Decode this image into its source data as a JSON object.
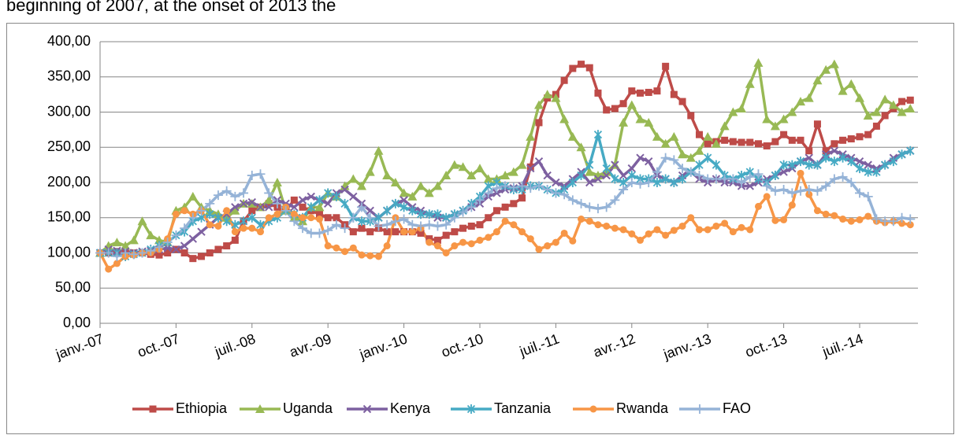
{
  "page_text": "beginning of 2007, at the onset of 2013 the",
  "chart_data": {
    "type": "line",
    "categories": [
      "janv.-07",
      null,
      null,
      null,
      null,
      null,
      null,
      null,
      null,
      "oct.-07",
      null,
      null,
      null,
      null,
      null,
      null,
      null,
      null,
      "juil.-08",
      null,
      null,
      null,
      null,
      null,
      null,
      null,
      null,
      "avr.-09",
      null,
      null,
      null,
      null,
      null,
      null,
      null,
      null,
      "janv.-10",
      null,
      null,
      null,
      null,
      null,
      null,
      null,
      null,
      "oct.-10",
      null,
      null,
      null,
      null,
      null,
      null,
      null,
      null,
      "juil.-11",
      null,
      null,
      null,
      null,
      null,
      null,
      null,
      null,
      "avr.-12",
      null,
      null,
      null,
      null,
      null,
      null,
      null,
      null,
      "janv.-13",
      null,
      null,
      null,
      null,
      null,
      null,
      null,
      null,
      "oct.-13",
      null,
      null,
      null,
      null,
      null,
      null,
      null,
      null,
      "juil.-14",
      null,
      null,
      null,
      null,
      null,
      null
    ],
    "ylim": [
      0,
      400
    ],
    "yticks": [
      {
        "value": 0,
        "label": "0,00"
      },
      {
        "value": 50,
        "label": "50,00"
      },
      {
        "value": 100,
        "label": "100,00"
      },
      {
        "value": 150,
        "label": "150,00"
      },
      {
        "value": 200,
        "label": "200,00"
      },
      {
        "value": 250,
        "label": "250,00"
      },
      {
        "value": 300,
        "label": "300,00"
      },
      {
        "value": 350,
        "label": "350,00"
      },
      {
        "value": 400,
        "label": "400,00"
      }
    ],
    "grid": true,
    "legend": "bottom",
    "series": [
      {
        "name": "Ethiopia",
        "color": "#be4b48",
        "marker": "square",
        "values": [
          100,
          100,
          102,
          103,
          100,
          100,
          98,
          97,
          100,
          105,
          100,
          92,
          95,
          100,
          105,
          110,
          118,
          145,
          160,
          165,
          170,
          165,
          160,
          175,
          165,
          160,
          155,
          150,
          150,
          140,
          130,
          135,
          130,
          135,
          130,
          130,
          130,
          130,
          128,
          120,
          118,
          125,
          130,
          135,
          138,
          140,
          150,
          160,
          165,
          170,
          178,
          222,
          285,
          320,
          325,
          345,
          362,
          368,
          363,
          327,
          303,
          305,
          312,
          330,
          327,
          328,
          330,
          365,
          325,
          315,
          295,
          268,
          255,
          258,
          260,
          258,
          257,
          257,
          255,
          252,
          258,
          268,
          260,
          260,
          245,
          283,
          245,
          255,
          260,
          262,
          265,
          268,
          280,
          295,
          305,
          315,
          317
        ]
      },
      {
        "name": "Uganda",
        "color": "#98b954",
        "marker": "triangle",
        "values": [
          100,
          110,
          115,
          110,
          118,
          145,
          125,
          118,
          115,
          160,
          165,
          180,
          165,
          160,
          155,
          150,
          160,
          170,
          170,
          165,
          175,
          200,
          160,
          150,
          145,
          165,
          165,
          185,
          180,
          195,
          205,
          195,
          215,
          245,
          210,
          200,
          185,
          180,
          195,
          185,
          195,
          210,
          225,
          222,
          210,
          220,
          205,
          205,
          210,
          215,
          225,
          265,
          310,
          325,
          320,
          290,
          265,
          250,
          215,
          210,
          215,
          225,
          285,
          310,
          290,
          285,
          265,
          255,
          265,
          240,
          235,
          245,
          265,
          255,
          280,
          300,
          305,
          340,
          370,
          290,
          280,
          290,
          300,
          315,
          320,
          345,
          360,
          368,
          330,
          340,
          320,
          295,
          300,
          318,
          310,
          300,
          305
        ]
      },
      {
        "name": "Kenya",
        "color": "#7d60a0",
        "marker": "x",
        "values": [
          100,
          105,
          103,
          102,
          100,
          102,
          103,
          105,
          107,
          105,
          110,
          120,
          130,
          140,
          150,
          155,
          165,
          170,
          172,
          165,
          165,
          175,
          170,
          165,
          175,
          180,
          175,
          170,
          185,
          190,
          180,
          170,
          160,
          150,
          160,
          170,
          175,
          165,
          160,
          155,
          150,
          150,
          155,
          160,
          165,
          170,
          180,
          185,
          190,
          192,
          195,
          220,
          230,
          210,
          200,
          195,
          205,
          215,
          200,
          205,
          210,
          225,
          210,
          220,
          235,
          230,
          210,
          205,
          200,
          210,
          215,
          205,
          200,
          205,
          200,
          200,
          195,
          195,
          200,
          205,
          210,
          215,
          220,
          230,
          235,
          225,
          240,
          245,
          240,
          235,
          230,
          225,
          220,
          225,
          235,
          240,
          245
        ]
      },
      {
        "name": "Tanzania",
        "color": "#46aac4",
        "marker": "star",
        "values": [
          100,
          100,
          100,
          95,
          98,
          100,
          105,
          110,
          115,
          125,
          130,
          145,
          150,
          155,
          150,
          145,
          140,
          145,
          150,
          140,
          145,
          150,
          160,
          155,
          150,
          165,
          175,
          185,
          180,
          170,
          150,
          145,
          145,
          150,
          160,
          170,
          165,
          160,
          155,
          155,
          155,
          150,
          155,
          160,
          170,
          180,
          195,
          200,
          195,
          190,
          190,
          195,
          195,
          190,
          185,
          190,
          200,
          210,
          225,
          268,
          220,
          205,
          200,
          210,
          205,
          205,
          200,
          205,
          200,
          205,
          215,
          225,
          235,
          225,
          210,
          205,
          210,
          215,
          205,
          200,
          210,
          225,
          225,
          230,
          225,
          225,
          235,
          230,
          235,
          230,
          220,
          215,
          215,
          225,
          230,
          240,
          245
        ]
      },
      {
        "name": "Rwanda",
        "color": "#f79646",
        "marker": "circle",
        "values": [
          100,
          77,
          85,
          95,
          97,
          100,
          100,
          105,
          120,
          155,
          160,
          155,
          160,
          140,
          138,
          160,
          130,
          135,
          135,
          130,
          150,
          155,
          165,
          155,
          150,
          150,
          148,
          110,
          107,
          102,
          107,
          97,
          96,
          95,
          110,
          150,
          130,
          130,
          135,
          115,
          110,
          100,
          110,
          115,
          113,
          118,
          122,
          130,
          145,
          140,
          130,
          120,
          105,
          110,
          115,
          128,
          117,
          148,
          145,
          140,
          138,
          135,
          133,
          127,
          118,
          127,
          133,
          125,
          132,
          138,
          150,
          133,
          133,
          138,
          142,
          130,
          136,
          133,
          166,
          180,
          146,
          147,
          168,
          213,
          183,
          160,
          155,
          153,
          148,
          145,
          147,
          152,
          145,
          143,
          145,
          142,
          140
        ]
      },
      {
        "name": "FAO",
        "color": "#95b3d7",
        "marker": "plus",
        "values": [
          100,
          100,
          95,
          100,
          98,
          100,
          103,
          108,
          115,
          125,
          135,
          150,
          160,
          170,
          182,
          188,
          180,
          185,
          210,
          212,
          185,
          170,
          160,
          145,
          135,
          128,
          128,
          132,
          140,
          135,
          150,
          165,
          150,
          138,
          140,
          145,
          148,
          140,
          138,
          140,
          138,
          140,
          150,
          158,
          165,
          175,
          185,
          192,
          195,
          193,
          195,
          192,
          195,
          190,
          185,
          183,
          175,
          170,
          165,
          163,
          165,
          175,
          190,
          200,
          198,
          200,
          215,
          235,
          232,
          220,
          215,
          210,
          205,
          205,
          205,
          205,
          200,
          208,
          212,
          195,
          188,
          190,
          185,
          188,
          190,
          188,
          195,
          205,
          208,
          200,
          185,
          180,
          148,
          145,
          145,
          150,
          148
        ]
      }
    ]
  }
}
